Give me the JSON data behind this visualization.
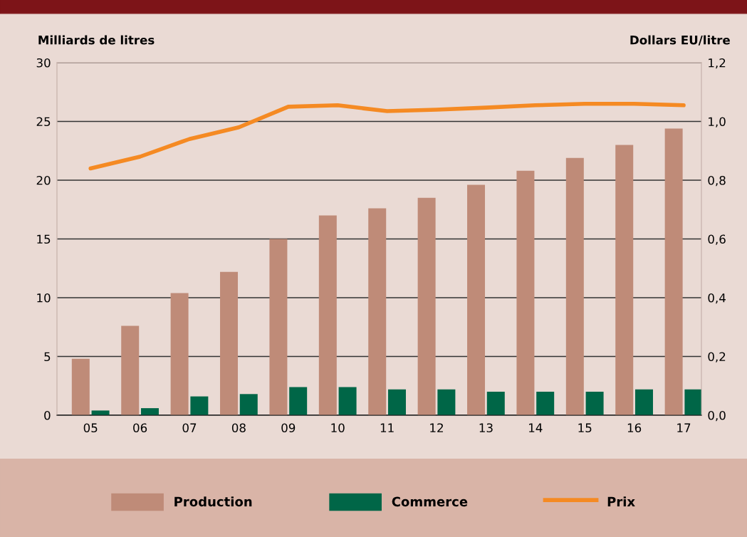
{
  "chart_data": {
    "type": "bar",
    "ylabel": "Milliards de litres",
    "y2label": "Dollars EU/litre",
    "categories": [
      "05",
      "06",
      "07",
      "08",
      "09",
      "10",
      "11",
      "12",
      "13",
      "14",
      "15",
      "16",
      "17"
    ],
    "series": [
      {
        "name": "Production",
        "color": "#bf8b78",
        "values": [
          4.8,
          7.6,
          10.4,
          12.2,
          15.0,
          17.0,
          17.6,
          18.5,
          19.6,
          20.8,
          21.9,
          23.0,
          24.4
        ]
      },
      {
        "name": "Commerce",
        "color": "#006647",
        "values": [
          0.4,
          0.6,
          1.6,
          1.8,
          2.4,
          2.4,
          2.2,
          2.2,
          2.0,
          2.0,
          2.0,
          2.2,
          2.2
        ]
      },
      {
        "name": "Prix",
        "type": "line",
        "axis": "y2",
        "color": "#f58a23",
        "values": [
          0.84,
          0.88,
          0.94,
          0.98,
          1.05,
          1.055,
          1.035,
          1.04,
          1.047,
          1.055,
          1.06,
          1.06,
          1.055
        ]
      }
    ],
    "ylim": [
      0,
      30
    ],
    "yticks": [
      0,
      5,
      10,
      15,
      20,
      25,
      30
    ],
    "y2lim": [
      0,
      1.2
    ],
    "y2ticks": [
      {
        "value": 0,
        "label": "0,0"
      },
      {
        "value": 0.2,
        "label": "0,2"
      },
      {
        "value": 0.4,
        "label": "0,4"
      },
      {
        "value": 0.6,
        "label": "0,6"
      },
      {
        "value": 0.8,
        "label": "0,8"
      },
      {
        "value": 1.0,
        "label": "1,0"
      },
      {
        "value": 1.2,
        "label": "1,2"
      }
    ],
    "grid": "y",
    "legend": "bottom",
    "marker": "none",
    "line_style": "solid"
  }
}
